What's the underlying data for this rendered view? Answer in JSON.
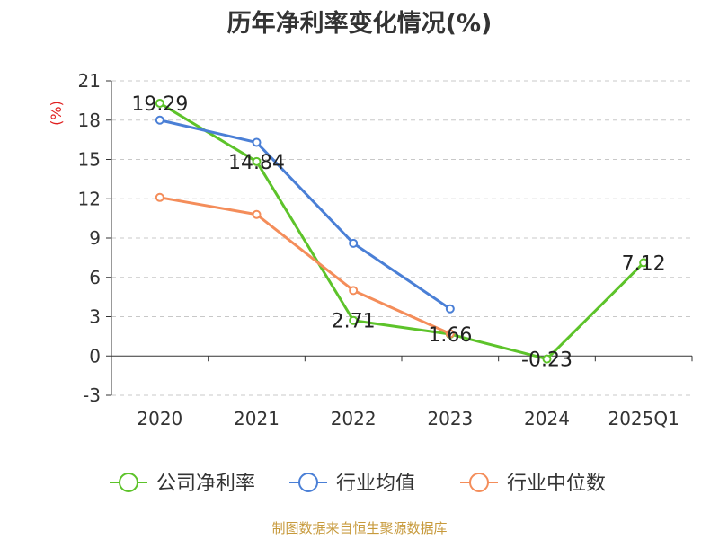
{
  "chart_data": {
    "type": "line",
    "title": "历年净利率变化情况(%)",
    "ylabel": "(%)",
    "xlabel": "",
    "categories": [
      "2020",
      "2021",
      "2022",
      "2023",
      "2024",
      "2025Q1"
    ],
    "yticks": [
      "21",
      "18",
      "15",
      "12",
      "9",
      "6",
      "3",
      "0",
      "-3"
    ],
    "ylim": [
      -3,
      21
    ],
    "grid": true,
    "legend_position": "bottom",
    "series": [
      {
        "name": "公司净利率",
        "color": "#5dc32a",
        "values": [
          19.29,
          14.84,
          2.71,
          1.66,
          -0.23,
          7.12
        ],
        "labels": [
          "19.29",
          "14.84",
          "2.71",
          "1.66",
          "-0.23",
          "7.12"
        ]
      },
      {
        "name": "行业均值",
        "color": "#4a7fd6",
        "values": [
          18.0,
          16.3,
          8.6,
          3.6,
          null,
          null
        ]
      },
      {
        "name": "行业中位数",
        "color": "#f48d5a",
        "values": [
          12.1,
          10.8,
          5.0,
          1.7,
          null,
          null
        ]
      }
    ]
  },
  "footer": {
    "source": "制图数据来自恒生聚源数据库",
    "source_color": "#c79a3c"
  },
  "axis_color": "#333333",
  "ylabel_color": "#e02020"
}
